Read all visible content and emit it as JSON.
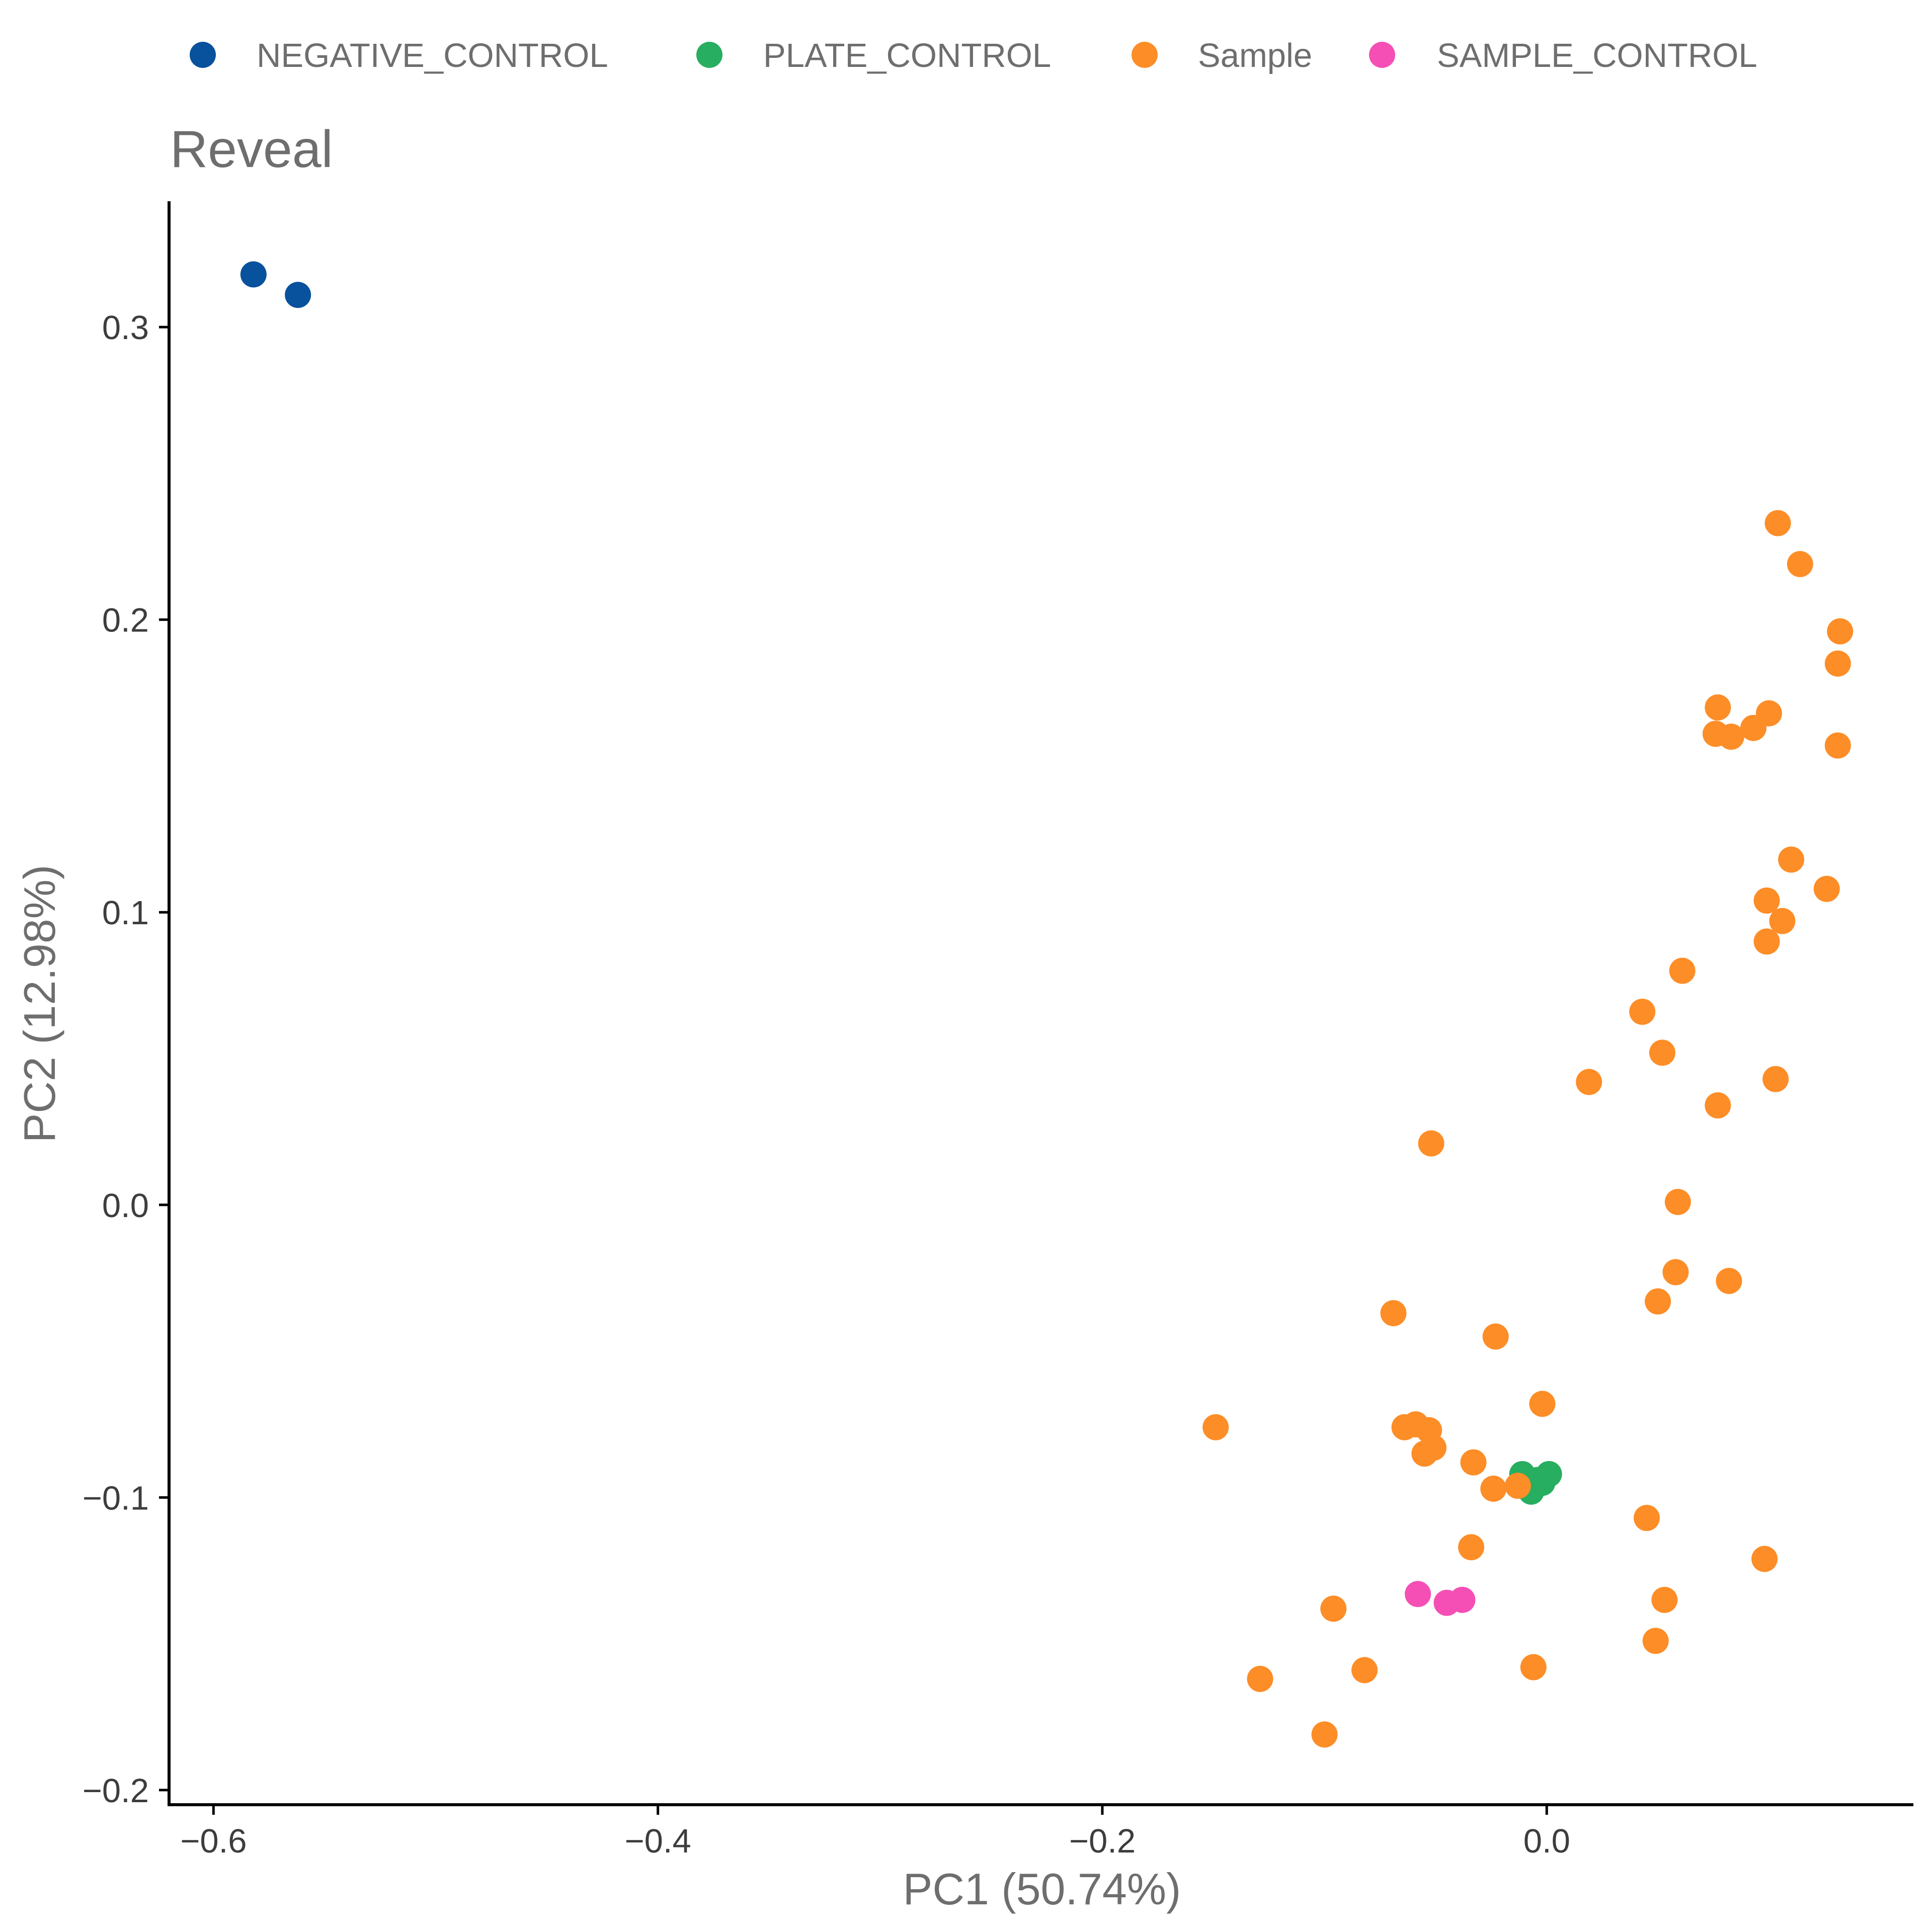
{
  "chart_data": {
    "type": "scatter",
    "title": "Reveal",
    "xlabel": "PC1 (50.74%)",
    "ylabel": "PC2 (12.98%)",
    "xlim": [
      -0.62,
      0.165
    ],
    "ylim": [
      -0.205,
      0.343
    ],
    "xticks": [
      {
        "value": -0.6,
        "label": "−0.6"
      },
      {
        "value": -0.4,
        "label": "−0.4"
      },
      {
        "value": -0.2,
        "label": "−0.2"
      },
      {
        "value": 0.0,
        "label": "0.0"
      }
    ],
    "yticks": [
      {
        "value": 0.3,
        "label": "0.3"
      },
      {
        "value": 0.2,
        "label": "0.2"
      },
      {
        "value": 0.1,
        "label": "0.1"
      },
      {
        "value": 0.0,
        "label": "0.0"
      },
      {
        "value": -0.1,
        "label": "−0.1"
      },
      {
        "value": -0.2,
        "label": "−0.2"
      }
    ],
    "grid": false,
    "legend_position": "top",
    "series": [
      {
        "name": "NEGATIVE_CONTROL",
        "color": "#08519c",
        "points": [
          [
            -0.582,
            0.318
          ],
          [
            -0.562,
            0.311
          ]
        ]
      },
      {
        "name": "PLATE_CONTROL",
        "color": "#27ae60",
        "points": [
          [
            -0.011,
            -0.092
          ],
          [
            -0.007,
            -0.098
          ],
          [
            -0.002,
            -0.095
          ],
          [
            0.001,
            -0.092
          ],
          [
            -0.004,
            -0.094
          ]
        ]
      },
      {
        "name": "Sample",
        "color": "#fd8d27",
        "points": [
          [
            0.104,
            0.233
          ],
          [
            0.114,
            0.219
          ],
          [
            0.132,
            0.196
          ],
          [
            0.131,
            0.185
          ],
          [
            0.077,
            0.17
          ],
          [
            0.1,
            0.168
          ],
          [
            0.093,
            0.163
          ],
          [
            0.076,
            0.161
          ],
          [
            0.083,
            0.16
          ],
          [
            0.131,
            0.157
          ],
          [
            0.11,
            0.118
          ],
          [
            0.126,
            0.108
          ],
          [
            0.099,
            0.104
          ],
          [
            0.106,
            0.097
          ],
          [
            0.099,
            0.09
          ],
          [
            0.061,
            0.08
          ],
          [
            0.043,
            0.066
          ],
          [
            0.052,
            0.052
          ],
          [
            0.019,
            0.042
          ],
          [
            0.103,
            0.043
          ],
          [
            0.077,
            0.034
          ],
          [
            -0.052,
            0.021
          ],
          [
            0.059,
            0.001
          ],
          [
            0.058,
            -0.023
          ],
          [
            0.082,
            -0.026
          ],
          [
            0.05,
            -0.033
          ],
          [
            -0.069,
            -0.037
          ],
          [
            -0.023,
            -0.045
          ],
          [
            -0.002,
            -0.068
          ],
          [
            -0.149,
            -0.076
          ],
          [
            -0.064,
            -0.076
          ],
          [
            -0.059,
            -0.075
          ],
          [
            -0.053,
            -0.077
          ],
          [
            -0.051,
            -0.083
          ],
          [
            -0.055,
            -0.085
          ],
          [
            -0.033,
            -0.088
          ],
          [
            -0.024,
            -0.097
          ],
          [
            -0.013,
            -0.096
          ],
          [
            0.045,
            -0.107
          ],
          [
            -0.034,
            -0.117
          ],
          [
            0.098,
            -0.121
          ],
          [
            -0.096,
            -0.138
          ],
          [
            0.053,
            -0.135
          ],
          [
            0.049,
            -0.149
          ],
          [
            -0.129,
            -0.162
          ],
          [
            -0.082,
            -0.159
          ],
          [
            -0.006,
            -0.158
          ],
          [
            -0.1,
            -0.181
          ]
        ]
      },
      {
        "name": "SAMPLE_CONTROL",
        "color": "#f54fb5",
        "points": [
          [
            -0.058,
            -0.133
          ],
          [
            -0.045,
            -0.136
          ],
          [
            -0.038,
            -0.135
          ]
        ]
      }
    ]
  }
}
